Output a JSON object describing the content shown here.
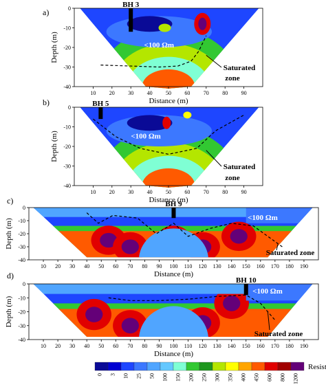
{
  "chart_data": [
    {
      "type": "heatmap",
      "panel": "a)",
      "ylabel": "Depth (m)",
      "xlabel": "Distance (m)",
      "xlim": [
        0,
        100
      ],
      "ylim": [
        -40,
        0
      ],
      "xticks": [
        10,
        20,
        30,
        40,
        50,
        60,
        70,
        80,
        90
      ],
      "yticks": [
        0,
        -10,
        -20,
        -30,
        -40
      ],
      "section_edge": [
        [
          3,
          0
        ],
        [
          98,
          0
        ],
        [
          62,
          -40
        ],
        [
          50,
          -41
        ],
        [
          38,
          -40
        ]
      ],
      "saturated_zone_line": [
        [
          14,
          -29
        ],
        [
          30,
          -29.5
        ],
        [
          45,
          -30
        ],
        [
          55,
          -29.5
        ],
        [
          62,
          -27
        ],
        [
          66,
          -22
        ],
        [
          70,
          -14
        ]
      ],
      "borehole": {
        "label": "BH 3",
        "x": 30,
        "depth": 12
      },
      "annotations": [
        "<100 Ωm",
        "Saturated",
        "zone"
      ]
    },
    {
      "type": "heatmap",
      "panel": "b)",
      "ylabel": "Depth (m)",
      "xlabel": "Distance (m)",
      "xlim": [
        0,
        100
      ],
      "ylim": [
        -40,
        0
      ],
      "xticks": [
        10,
        20,
        30,
        40,
        50,
        60,
        70,
        80,
        90
      ],
      "yticks": [
        0,
        -10,
        -20,
        -30,
        -40
      ],
      "section_edge": [
        [
          3,
          0
        ],
        [
          98,
          0
        ],
        [
          62,
          -40
        ],
        [
          50,
          -41
        ],
        [
          38,
          -40
        ]
      ],
      "saturated_zone_line": [
        [
          10,
          -6
        ],
        [
          22,
          -15
        ],
        [
          35,
          -21
        ],
        [
          50,
          -24
        ],
        [
          65,
          -21
        ],
        [
          75,
          -12
        ],
        [
          90,
          -4
        ]
      ],
      "borehole": {
        "label": "BH 5",
        "x": 14,
        "depth": 6
      },
      "annotations": [
        "<100 Ωm",
        "Saturated",
        "zone"
      ]
    },
    {
      "type": "heatmap",
      "panel": "c)",
      "ylabel": "Depth (m)",
      "xlabel": "Distance (m)",
      "xlim": [
        0,
        200
      ],
      "ylim": [
        -40,
        0
      ],
      "xticks": [
        10,
        20,
        30,
        40,
        50,
        60,
        70,
        80,
        90,
        100,
        110,
        120,
        130,
        140,
        150,
        160,
        170,
        180,
        190
      ],
      "yticks": [
        0,
        -10,
        -20,
        -30,
        -40
      ],
      "section_edge": [
        [
          3,
          0
        ],
        [
          196,
          0
        ],
        [
          165,
          -38
        ],
        [
          40,
          -38
        ],
        [
          8,
          -5
        ]
      ],
      "saturated_zone_line": [
        [
          40,
          -4
        ],
        [
          48,
          -12
        ],
        [
          58,
          -6
        ],
        [
          75,
          -8
        ],
        [
          88,
          -20
        ],
        [
          100,
          -12
        ],
        [
          110,
          -22
        ],
        [
          125,
          -16
        ],
        [
          140,
          -12
        ],
        [
          155,
          -14
        ],
        [
          165,
          -22
        ],
        [
          175,
          -30
        ]
      ],
      "borehole": {
        "label": "BH 9",
        "x": 100,
        "depth": 8
      },
      "annotations": [
        "<100 Ωm",
        "Saturated zone"
      ]
    },
    {
      "type": "heatmap",
      "panel": "d)",
      "ylabel": "Depth (m)",
      "xlabel": "Distance (m)",
      "xlim": [
        0,
        200
      ],
      "ylim": [
        -40,
        0
      ],
      "xticks": [
        10,
        20,
        30,
        40,
        50,
        60,
        70,
        80,
        90,
        100,
        110,
        120,
        130,
        140,
        150,
        160,
        170,
        180,
        190
      ],
      "yticks": [
        0,
        -10,
        -20,
        -30,
        -40
      ],
      "section_edge": [
        [
          3,
          0
        ],
        [
          196,
          0
        ],
        [
          165,
          -38
        ],
        [
          40,
          -38
        ],
        [
          8,
          -5
        ]
      ],
      "saturated_zone_line": [
        [
          55,
          -10
        ],
        [
          70,
          -12
        ],
        [
          90,
          -12
        ],
        [
          110,
          -11
        ],
        [
          130,
          -9
        ],
        [
          150,
          -8
        ],
        [
          160,
          -14
        ],
        [
          170,
          -26
        ]
      ],
      "borehole": {
        "label": "BH 10",
        "x": 150,
        "depth": 8
      },
      "annotations": [
        "<100 Ωm",
        "Saturated zone"
      ]
    }
  ],
  "colorbar": {
    "label": "Resistivity (Ωm)",
    "ticks": [
      "0",
      "3",
      "10",
      "25",
      "50",
      "100",
      "150",
      "200",
      "250",
      "300",
      "350",
      "400",
      "450",
      "600",
      "800",
      "1200"
    ],
    "colors": [
      "#0a0a96",
      "#0000d2",
      "#1e46ff",
      "#3c78ff",
      "#50a5ff",
      "#64c8ff",
      "#7fffd4",
      "#32c832",
      "#1e961e",
      "#b4e600",
      "#ffff00",
      "#ffa500",
      "#ff5a00",
      "#e10000",
      "#a00000",
      "#640078"
    ]
  }
}
